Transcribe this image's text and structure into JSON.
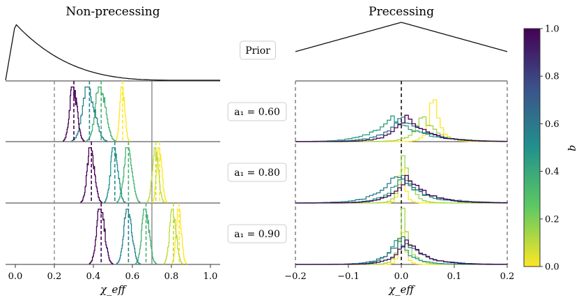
{
  "chart_data": [
    {
      "type": "histogram",
      "title": "Non-precessing",
      "xlabel": "χ_eff",
      "xlim": [
        -0.05,
        1.05
      ],
      "xticks": [
        0.0,
        0.2,
        0.4,
        0.6,
        0.8,
        1.0
      ],
      "xtick_labels": [
        "0.0",
        "0.2",
        "0.4",
        "0.6",
        "0.8",
        "1.0"
      ],
      "reference_lines": {
        "dashed_gray": 0.2,
        "solid_gray": 0.7
      },
      "prior": {
        "shape": "peak at ~0.0 decaying to ~0 by ~0.85"
      },
      "rows": [
        {
          "label": "a₁ = 0.60",
          "series": [
            {
              "q": 0.0,
              "median": 0.55,
              "width": 0.012
            },
            {
              "q": 0.35,
              "median": 0.44,
              "width": 0.025
            },
            {
              "q": 0.55,
              "median": 0.38,
              "width": 0.03
            },
            {
              "q": 1.0,
              "median": 0.3,
              "width": 0.018
            }
          ]
        },
        {
          "label": "a₁ = 0.80",
          "series": [
            {
              "q": 0.0,
              "median": 0.74,
              "width": 0.013
            },
            {
              "q": 0.1,
              "median": 0.72,
              "width": 0.015
            },
            {
              "q": 0.35,
              "median": 0.58,
              "width": 0.02
            },
            {
              "q": 0.5,
              "median": 0.51,
              "width": 0.018
            },
            {
              "q": 1.0,
              "median": 0.39,
              "width": 0.018
            }
          ]
        },
        {
          "label": "a₁ = 0.90",
          "series": [
            {
              "q": 0.0,
              "median": 0.84,
              "width": 0.013
            },
            {
              "q": 0.1,
              "median": 0.81,
              "width": 0.016
            },
            {
              "q": 0.35,
              "median": 0.67,
              "width": 0.018
            },
            {
              "q": 0.55,
              "median": 0.58,
              "width": 0.02
            },
            {
              "q": 1.0,
              "median": 0.44,
              "width": 0.02
            }
          ]
        }
      ]
    },
    {
      "type": "histogram",
      "title": "Precessing",
      "xlabel": "χ_eff",
      "xlim": [
        -0.2,
        0.2
      ],
      "xticks": [
        -0.2,
        -0.1,
        0.0,
        0.1,
        0.2
      ],
      "xtick_labels": [
        "−0.2",
        "−0.1",
        "0.0",
        "0.1",
        "0.2"
      ],
      "reference_lines": {
        "dashed_gray": [
          -0.2,
          0.2
        ],
        "dashed_black": 0.0
      },
      "prior": {
        "shape": "triangular, peak at 0.0, range ±0.2"
      },
      "rows": [
        {
          "label": "a₁ = 0.60",
          "series": [
            {
              "q": 0.0,
              "median": 0.06,
              "width": 0.01
            },
            {
              "q": 0.15,
              "median": 0.04,
              "width": 0.02
            },
            {
              "q": 0.45,
              "median": -0.02,
              "width": 0.04
            },
            {
              "q": 0.6,
              "median": 0.0,
              "width": 0.035
            },
            {
              "q": 1.0,
              "median": 0.01,
              "width": 0.03
            }
          ]
        },
        {
          "label": "a₁ = 0.80",
          "series": [
            {
              "q": 0.0,
              "median": 0.0,
              "width": 0.005
            },
            {
              "q": 0.15,
              "median": 0.005,
              "width": 0.01
            },
            {
              "q": 0.45,
              "median": 0.0,
              "width": 0.03
            },
            {
              "q": 0.6,
              "median": -0.01,
              "width": 0.04
            },
            {
              "q": 1.0,
              "median": 0.01,
              "width": 0.03
            }
          ]
        },
        {
          "label": "a₁ = 0.90",
          "series": [
            {
              "q": 0.0,
              "median": 0.0,
              "width": 0.005
            },
            {
              "q": 0.15,
              "median": 0.003,
              "width": 0.01
            },
            {
              "q": 0.45,
              "median": -0.01,
              "width": 0.02
            },
            {
              "q": 0.6,
              "median": 0.0,
              "width": 0.03
            },
            {
              "q": 1.0,
              "median": 0.01,
              "width": 0.025
            }
          ]
        }
      ]
    }
  ],
  "labels": {
    "prior": "Prior",
    "row_labels": [
      "a₁ = 0.60",
      "a₁ = 0.80",
      "a₁ = 0.90"
    ]
  },
  "colorbar": {
    "label": "q",
    "range": [
      0.0,
      1.0
    ],
    "ticks": [
      0.0,
      0.2,
      0.4,
      0.6,
      0.8,
      1.0
    ],
    "tick_labels": [
      "0.0",
      "0.2",
      "0.4",
      "0.6",
      "0.8",
      "1.0"
    ],
    "colormap": "viridis",
    "colors": [
      "#fde725",
      "#5ec962",
      "#21918c",
      "#3b528b",
      "#440154"
    ]
  },
  "colors": {
    "axis": "#333333",
    "ref_gray": "#808080",
    "prior": "#111111"
  }
}
